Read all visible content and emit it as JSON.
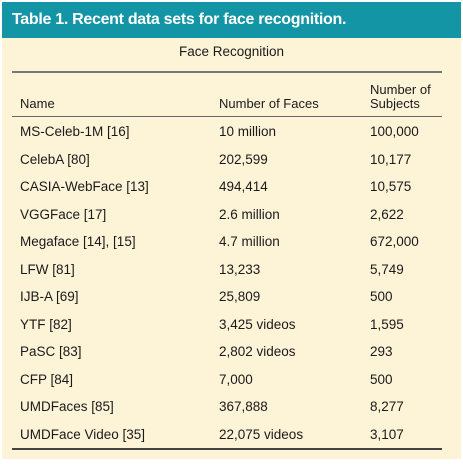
{
  "table": {
    "title": "Table 1. Recent data sets for face recognition.",
    "group_title": "Face Recognition",
    "headers": {
      "name": "Name",
      "faces": "Number of Faces",
      "subjects": "Number of Subjects"
    },
    "rows": [
      {
        "name": "MS-Celeb-1M [16]",
        "faces": "10 million",
        "subjects": "100,000"
      },
      {
        "name": "CelebA [80]",
        "faces": "202,599",
        "subjects": "10,177"
      },
      {
        "name": "CASIA-WebFace [13]",
        "faces": "494,414",
        "subjects": "10,575"
      },
      {
        "name": "VGGFace [17]",
        "faces": "2.6 million",
        "subjects": "2,622"
      },
      {
        "name": "Megaface [14], [15]",
        "faces": "4.7 million",
        "subjects": "672,000"
      },
      {
        "name": "LFW [81]",
        "faces": "13,233",
        "subjects": "5,749"
      },
      {
        "name": "IJB-A [69]",
        "faces": "25,809",
        "subjects": "500"
      },
      {
        "name": "YTF [82]",
        "faces": "3,425 videos",
        "subjects": "1,595"
      },
      {
        "name": "PaSC [83]",
        "faces": "2,802 videos",
        "subjects": "293"
      },
      {
        "name": "CFP [84]",
        "faces": "7,000",
        "subjects": "500"
      },
      {
        "name": "UMDFaces [85]",
        "faces": "367,888",
        "subjects": "8,277"
      },
      {
        "name": "UMDFace Video [35]",
        "faces": "22,075 videos",
        "subjects": "3,107"
      }
    ]
  },
  "colors": {
    "title_bar": "#1495a6",
    "background": "#fdf3d7"
  }
}
